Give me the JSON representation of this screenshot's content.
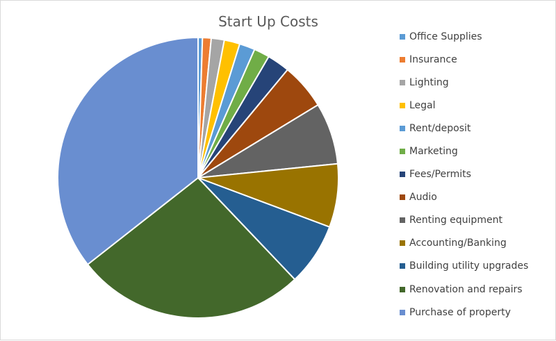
{
  "chart_data": {
    "type": "pie",
    "title": "Start Up Costs",
    "legend_position": "right",
    "categories": [
      "Office Supplies",
      "Insurance",
      "Lighting",
      "Legal",
      "Rent/deposit",
      "Marketing",
      "Fees/Permits",
      "Audio",
      "Renting equipment",
      "Accounting/Banking",
      "Building utility upgrades",
      "Renovation and repairs",
      "Purchase of property"
    ],
    "values": [
      0.5,
      1.0,
      1.5,
      1.8,
      1.8,
      1.8,
      2.6,
      5.3,
      7.1,
      7.3,
      7.2,
      26.5,
      35.6
    ],
    "colors": [
      "#5b9bd5",
      "#ed7d31",
      "#a5a5a5",
      "#ffc000",
      "#5b9bd5",
      "#70ad47",
      "#264478",
      "#9e480e",
      "#636363",
      "#997300",
      "#255e91",
      "#43682b",
      "#698ed0"
    ]
  }
}
